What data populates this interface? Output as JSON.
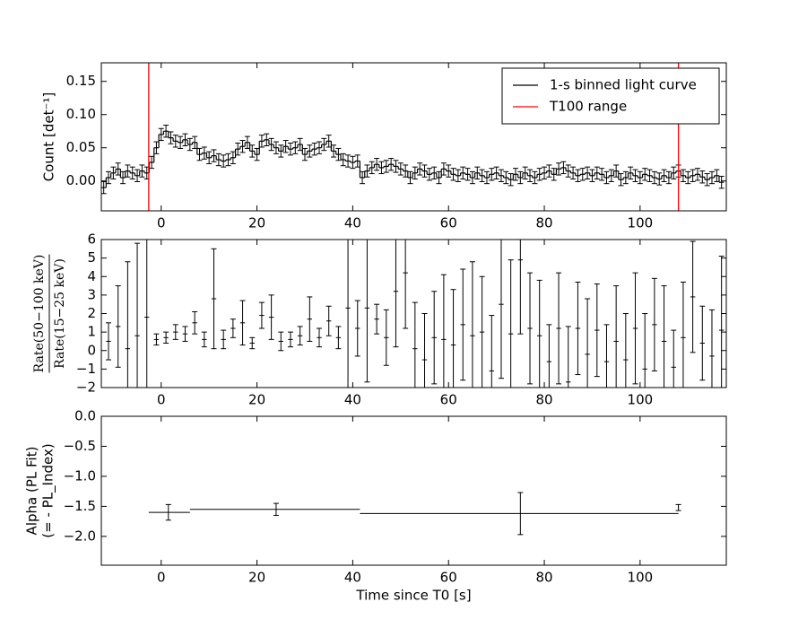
{
  "chart_data": [
    {
      "type": "line",
      "ylabel": [
        "Count [det⁻¹]"
      ],
      "xlim": [
        -12.5,
        118
      ],
      "xticks": [
        0,
        20,
        40,
        60,
        80,
        100
      ],
      "ylim": [
        -0.045,
        0.178
      ],
      "yticks": [
        {
          "value": 0,
          "label": "0.00"
        },
        {
          "value": 0.05,
          "label": "0.05"
        },
        {
          "value": 0.1,
          "label": "0.10"
        },
        {
          "value": 0.15,
          "label": "0.15"
        }
      ],
      "legend": "upper right",
      "series": [
        {
          "name": "1-s binned light curve",
          "color": "#000000",
          "error": 0.009,
          "x": [
            -12,
            -11,
            -10,
            -9,
            -8,
            -7,
            -6,
            -5,
            -4,
            -3,
            -2,
            -1,
            0,
            1,
            2,
            3,
            4,
            5,
            6,
            7,
            8,
            9,
            10,
            11,
            12,
            13,
            14,
            15,
            16,
            17,
            18,
            19,
            20,
            21,
            22,
            23,
            24,
            25,
            26,
            27,
            28,
            29,
            30,
            31,
            32,
            33,
            34,
            35,
            36,
            37,
            38,
            39,
            40,
            41,
            42,
            43,
            44,
            45,
            46,
            47,
            48,
            49,
            50,
            51,
            52,
            53,
            54,
            55,
            56,
            57,
            58,
            59,
            60,
            61,
            62,
            63,
            64,
            65,
            66,
            67,
            68,
            69,
            70,
            71,
            72,
            73,
            74,
            75,
            76,
            77,
            78,
            79,
            80,
            81,
            82,
            83,
            84,
            85,
            86,
            87,
            88,
            89,
            90,
            91,
            92,
            93,
            94,
            95,
            96,
            97,
            98,
            99,
            100,
            101,
            102,
            103,
            104,
            105,
            106,
            107,
            108,
            109,
            110,
            111,
            112,
            113,
            114,
            115,
            116,
            117
          ],
          "values": [
            -0.01,
            0.005,
            0.012,
            0.018,
            0.005,
            0.015,
            0.012,
            0.008,
            0.015,
            0.012,
            0.028,
            0.05,
            0.07,
            0.075,
            0.065,
            0.06,
            0.058,
            0.062,
            0.055,
            0.058,
            0.04,
            0.042,
            0.035,
            0.038,
            0.032,
            0.03,
            0.032,
            0.035,
            0.048,
            0.052,
            0.058,
            0.045,
            0.04,
            0.06,
            0.062,
            0.055,
            0.05,
            0.045,
            0.052,
            0.048,
            0.05,
            0.055,
            0.04,
            0.045,
            0.048,
            0.05,
            0.055,
            0.06,
            0.045,
            0.04,
            0.032,
            0.03,
            0.028,
            0.03,
            0.005,
            0.015,
            0.02,
            0.025,
            0.02,
            0.022,
            0.025,
            0.022,
            0.018,
            0.015,
            0.005,
            0.012,
            0.018,
            0.015,
            0.01,
            0.012,
            0.005,
            0.018,
            0.015,
            0.01,
            0.008,
            0.012,
            0.01,
            0.005,
            0.012,
            0.008,
            0.005,
            0.01,
            0.012,
            0.008,
            0.005,
            0.002,
            0.01,
            0.005,
            0.012,
            0.008,
            0.005,
            0.01,
            0.012,
            0.015,
            0.01,
            0.018,
            0.02,
            0.015,
            0.012,
            0.008,
            0.01,
            0.012,
            0.008,
            0.012,
            0.01,
            0.005,
            0.008,
            0.015,
            0.002,
            0.005,
            0.012,
            0.008,
            0.005,
            0.01,
            0.008,
            0.005,
            0.003,
            0.008,
            0.005,
            0.012,
            0.015,
            0.008,
            0.005,
            0.008,
            0.01,
            0.006,
            0.002,
            0.005,
            0.008,
            -0.002
          ]
        },
        {
          "name": "T100 range",
          "color": "#ff0000",
          "vlines": [
            -2.6,
            108
          ]
        }
      ]
    },
    {
      "type": "scatter",
      "ylabel": [
        "Rate(50−100 keV)",
        "Rate(15−25 keV)"
      ],
      "ylabel_fraction": true,
      "xlim": [
        -12.5,
        118
      ],
      "xticks": [
        0,
        20,
        40,
        60,
        80,
        100
      ],
      "ylim": [
        -2,
        6
      ],
      "yticks": [
        {
          "value": -2,
          "label": "−2"
        },
        {
          "value": -1,
          "label": "−1"
        },
        0,
        1,
        2,
        3,
        4,
        5,
        6
      ],
      "series": [
        {
          "color": "#000000",
          "x": [
            -11,
            -9,
            -7,
            -5,
            -3,
            -1,
            1,
            3,
            5,
            7,
            9,
            11,
            13,
            15,
            17,
            19,
            21,
            23,
            25,
            27,
            29,
            31,
            33,
            35,
            37,
            39,
            41,
            43,
            45,
            47,
            49,
            51,
            53,
            55,
            57,
            59,
            61,
            63,
            65,
            67,
            69,
            71,
            73,
            75,
            77,
            79,
            81,
            83,
            85,
            87,
            89,
            91,
            93,
            95,
            97,
            99,
            101,
            103,
            105,
            107,
            109,
            111,
            113,
            115,
            117
          ],
          "values": [
            0.5,
            1.3,
            0.1,
            0.8,
            1.8,
            0.6,
            0.7,
            1.0,
            0.9,
            1.5,
            0.6,
            2.8,
            0.6,
            1.2,
            1.5,
            0.4,
            1.9,
            1.8,
            0.5,
            0.6,
            0.8,
            1.7,
            0.7,
            1.6,
            0.7,
            2.3,
            1.2,
            2.3,
            1.7,
            0.7,
            3.2,
            4.2,
            0.1,
            -0.5,
            0.7,
            0.6,
            0.3,
            1.4,
            0.8,
            1.0,
            -1.1,
            2.5,
            0.9,
            4.9,
            1.2,
            0.8,
            -0.6,
            1.2,
            -1.7,
            1.2,
            -0.2,
            1.1,
            -0.6,
            0.5,
            -0.5,
            1.2,
            -1,
            1.4,
            0.5,
            -0.9,
            0.7,
            2.9,
            0.4,
            -0.3,
            1.1
          ],
          "errors": [
            1.0,
            2.2,
            4.7,
            5,
            5,
            0.3,
            0.3,
            0.4,
            0.4,
            0.6,
            0.4,
            2.7,
            0.5,
            0.5,
            1.2,
            0.3,
            0.7,
            1.2,
            0.5,
            0.4,
            0.5,
            1.2,
            0.5,
            0.8,
            0.6,
            4.5,
            1.5,
            4,
            0.8,
            1.5,
            3,
            3,
            2.5,
            2.5,
            2.5,
            3.5,
            3,
            3,
            4,
            3,
            3,
            4,
            4,
            4,
            3,
            3,
            2,
            3,
            3,
            2.5,
            3,
            2.5,
            2,
            3,
            2.5,
            3,
            3,
            2.5,
            3,
            2,
            3,
            3,
            2,
            2.5,
            4
          ]
        }
      ]
    },
    {
      "type": "scatter",
      "ylabel": [
        "Alpha (PL Fit)",
        "(= - PL_Index)"
      ],
      "xlabel": "Time since T0 [s]",
      "xlim": [
        -12.5,
        118
      ],
      "xticks": [
        0,
        20,
        40,
        60,
        80,
        100
      ],
      "ylim": [
        -2.48,
        0
      ],
      "yticks": [
        {
          "value": -2,
          "label": "−2.0"
        },
        {
          "value": -1.5,
          "label": "−1.5"
        },
        {
          "value": -1,
          "label": "−1.0"
        },
        {
          "value": -0.5,
          "label": "−0.5"
        },
        {
          "value": 0,
          "label": "0.0"
        }
      ],
      "series": [
        {
          "color": "#000000",
          "x": [
            1.5,
            24,
            75,
            108
          ],
          "x_lo": [
            -2.6,
            6,
            41.5,
            107.9
          ],
          "x_hi": [
            6,
            41.5,
            108,
            108.1
          ],
          "values": [
            -1.6,
            -1.55,
            -1.62,
            -1.52
          ],
          "errors": [
            0.13,
            0.1,
            0.35,
            0.05
          ]
        }
      ]
    }
  ]
}
